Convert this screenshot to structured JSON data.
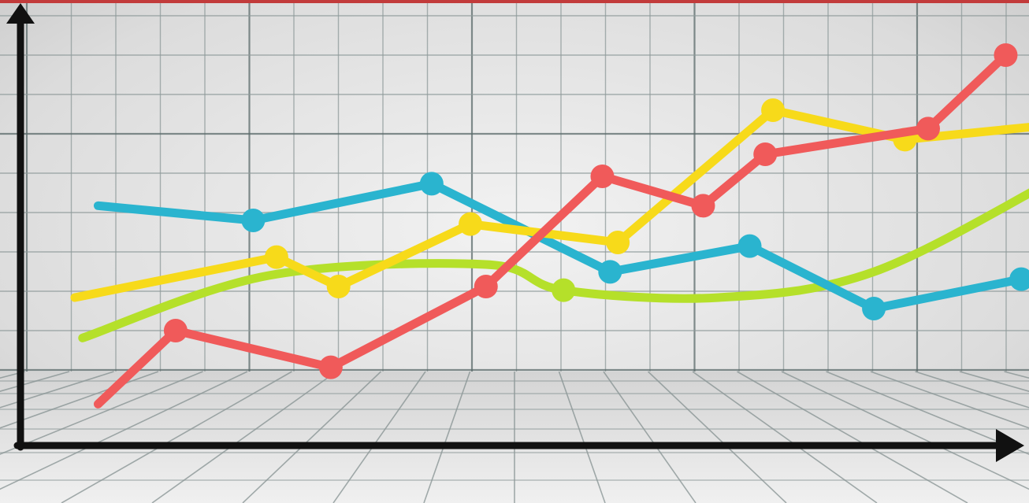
{
  "chart_data": {
    "type": "line",
    "title": "",
    "xlabel": "",
    "ylabel": "",
    "xlim": [
      0,
      13
    ],
    "ylim": [
      0,
      12
    ],
    "grid": true,
    "legend": "none",
    "series": [
      {
        "color": "#f05a5a",
        "marker": true,
        "points": [
          [
            1,
            1
          ],
          [
            2,
            3
          ],
          [
            4,
            2
          ],
          [
            6,
            4.2
          ],
          [
            7.5,
            7.2
          ],
          [
            8.8,
            6.4
          ],
          [
            9.6,
            7.8
          ],
          [
            11.7,
            8.5
          ],
          [
            12.7,
            10.5
          ]
        ]
      },
      {
        "color": "#2ab4cf",
        "marker": true,
        "points": [
          [
            1,
            6.4
          ],
          [
            3,
            6
          ],
          [
            5.3,
            7
          ],
          [
            7.6,
            4.6
          ],
          [
            9.4,
            5.3
          ],
          [
            11,
            3.6
          ],
          [
            12.9,
            4.4
          ]
        ]
      },
      {
        "color": "#f7da1a",
        "marker": true,
        "points": [
          [
            0.7,
            3.9
          ],
          [
            3.3,
            5.0
          ],
          [
            4.1,
            4.2
          ],
          [
            5.8,
            5.9
          ],
          [
            7.7,
            5.4
          ],
          [
            9.7,
            9.0
          ],
          [
            11.4,
            8.2
          ],
          [
            13.3,
            8.6
          ]
        ]
      },
      {
        "color": "#b5e02a",
        "marker": false,
        "points": [
          [
            0.8,
            2.8
          ],
          [
            3.2,
            4.5
          ],
          [
            6.0,
            4.8
          ],
          [
            7.0,
            4.1
          ],
          [
            9.0,
            3.9
          ],
          [
            11.0,
            4.6
          ],
          [
            13.4,
            7.2
          ]
        ]
      }
    ]
  }
}
